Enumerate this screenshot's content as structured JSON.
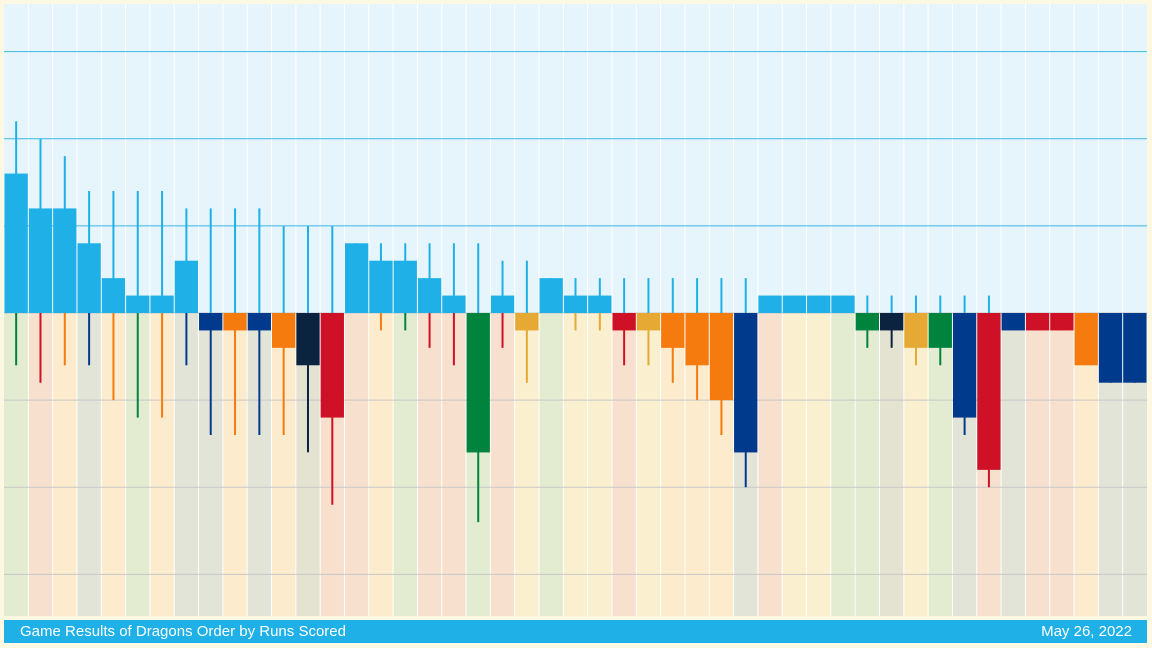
{
  "chart_data": {
    "type": "bar",
    "title": "Game Results of Dragons Order by Runs Scored",
    "date": "May 26, 2022",
    "color": "#1EB0E6",
    "ylim": [
      -17.5,
      17.5
    ],
    "yticks": [
      -15,
      -10,
      -5,
      0,
      5,
      10,
      15
    ],
    "grid": true,
    "runs_scored": [
      8,
      6,
      6,
      4,
      2,
      1,
      1,
      3,
      0,
      0,
      0,
      0,
      0,
      0,
      4,
      3,
      3,
      2,
      1,
      0,
      1,
      0,
      2,
      1,
      1,
      0,
      0,
      0,
      0,
      0,
      0,
      1,
      1,
      1,
      1,
      0,
      0,
      0,
      0,
      0,
      0,
      0,
      0,
      0,
      0,
      0,
      0
    ],
    "hits": [
      11,
      10,
      9,
      7,
      7,
      7,
      7,
      6,
      6,
      6,
      6,
      5,
      5,
      5,
      4,
      4,
      4,
      4,
      4,
      4,
      3,
      3,
      2,
      2,
      2,
      2,
      2,
      2,
      2,
      2,
      2,
      1,
      1,
      1,
      1,
      1,
      1,
      1,
      1,
      1,
      1,
      0,
      0,
      0,
      0,
      0,
      0
    ],
    "runs_allowed": [
      0,
      0,
      0,
      0,
      0,
      0,
      0,
      0,
      -1,
      -1,
      -1,
      -2,
      -3,
      -6,
      0,
      0,
      0,
      0,
      0,
      -8,
      0,
      -1,
      0,
      0,
      0,
      -1,
      -1,
      -2,
      -3,
      -5,
      -8,
      0,
      0,
      0,
      0,
      -1,
      -1,
      -2,
      -2,
      -6,
      -9,
      -1,
      -1,
      -1,
      -3,
      -4,
      -4
    ],
    "hits_allowed": [
      -3,
      -4,
      -3,
      -3,
      -5,
      -6,
      -6,
      -3,
      -7,
      -7,
      -7,
      -7,
      -8,
      -11,
      0,
      -1,
      -1,
      -2,
      -3,
      -12,
      -2,
      -4,
      0,
      -1,
      -1,
      -3,
      -3,
      -4,
      -5,
      -7,
      -10,
      0,
      0,
      0,
      0,
      -2,
      -2,
      -3,
      -3,
      -7,
      -10,
      -1,
      -1,
      -1,
      -3,
      -4,
      -4
    ],
    "opponent_colors": [
      "#00843D",
      "#CE1126",
      "#F57B0F",
      "#003A8C",
      "#F57B0F",
      "#00843D",
      "#F57B0F",
      "#003A8C",
      "#003A8C",
      "#F57B0F",
      "#003A8C",
      "#F57B0F",
      "#0C2340",
      "#CE1126",
      "#CE1126",
      "#F57B0F",
      "#00843D",
      "#CE1126",
      "#CE1126",
      "#00843D",
      "#CE1126",
      "#E5A934",
      "#00843D",
      "#E5A934",
      "#E5A934",
      "#CE1126",
      "#E5A934",
      "#F57B0F",
      "#F57B0F",
      "#F57B0F",
      "#003A8C",
      "#CE1126",
      "#E5A934",
      "#E5A934",
      "#00843D",
      "#00843D",
      "#0C2340",
      "#E5A934",
      "#00843D",
      "#003A8C",
      "#CE1126",
      "#003A8C",
      "#CE1126",
      "#CE1126",
      "#F57B0F",
      "#003A8C",
      "#003A8C"
    ]
  }
}
